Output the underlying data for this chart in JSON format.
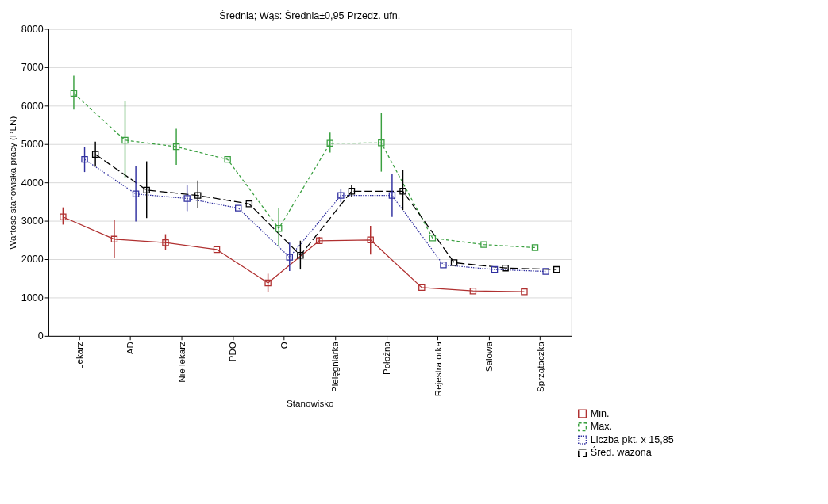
{
  "chart_data": {
    "type": "line",
    "title": "Średnia; Wąs: Średnia±0,95 Przedz. ufn.",
    "xlabel": "Stanowisko",
    "ylabel": "Wartość stanowiska pracy (PLN)",
    "categories": [
      "Lekarz",
      "AD",
      "Nie lekarz",
      "PDO",
      "O",
      "Pielęgniarka",
      "Położna",
      "Rejestratorka",
      "Salowa",
      "Sprzątaczka"
    ],
    "ylim": [
      0,
      8000
    ],
    "yticks": [
      0,
      1000,
      2000,
      3000,
      4000,
      5000,
      6000,
      7000,
      8000
    ],
    "grid": "y",
    "legend": "bottom right",
    "marker": "square",
    "series": [
      {
        "name": "Min.",
        "color": "#b03030",
        "line_style": "solid",
        "values": [
          3100,
          2520,
          2430,
          2250,
          1380,
          2480,
          2500,
          1260,
          1170,
          1150
        ],
        "errors": [
          [
            2900,
            3350
          ],
          [
            2030,
            3020
          ],
          [
            2230,
            2650
          ],
          null,
          [
            1150,
            1620
          ],
          [
            2400,
            2580
          ],
          [
            2120,
            2870
          ],
          null,
          null,
          null
        ]
      },
      {
        "name": "Max.",
        "color": "#3aa040",
        "line_style": "dashed",
        "values": [
          6320,
          5100,
          4930,
          4600,
          2800,
          5020,
          5030,
          2550,
          2380,
          2300
        ],
        "errors": [
          [
            5900,
            6780
          ],
          [
            4120,
            6120
          ],
          [
            4460,
            5400
          ],
          null,
          [
            2330,
            3330
          ],
          [
            4780,
            5300
          ],
          [
            4280,
            5820
          ],
          null,
          null,
          null
        ]
      },
      {
        "name": "Liczba pkt. x 15,85",
        "color": "#3030a0",
        "line_style": "dotted",
        "values": [
          4600,
          3700,
          3580,
          3330,
          2050,
          3660,
          3660,
          1850,
          1730,
          1680
        ],
        "errors": [
          [
            4270,
            4930
          ],
          [
            2980,
            4430
          ],
          [
            3250,
            3920
          ],
          null,
          [
            1690,
            2430
          ],
          [
            3490,
            3830
          ],
          [
            3100,
            4230
          ],
          null,
          null,
          null
        ]
      },
      {
        "name": "Śred. ważona",
        "color": "#000000",
        "line_style": "longdash",
        "values": [
          4730,
          3800,
          3660,
          3440,
          2100,
          3770,
          3770,
          1910,
          1770,
          1730
        ],
        "errors": [
          [
            4410,
            5060
          ],
          [
            3070,
            4550
          ],
          [
            3320,
            4050
          ],
          null,
          [
            1730,
            2480
          ],
          [
            3630,
            3920
          ],
          [
            3280,
            4330
          ],
          null,
          null,
          null
        ]
      }
    ]
  }
}
